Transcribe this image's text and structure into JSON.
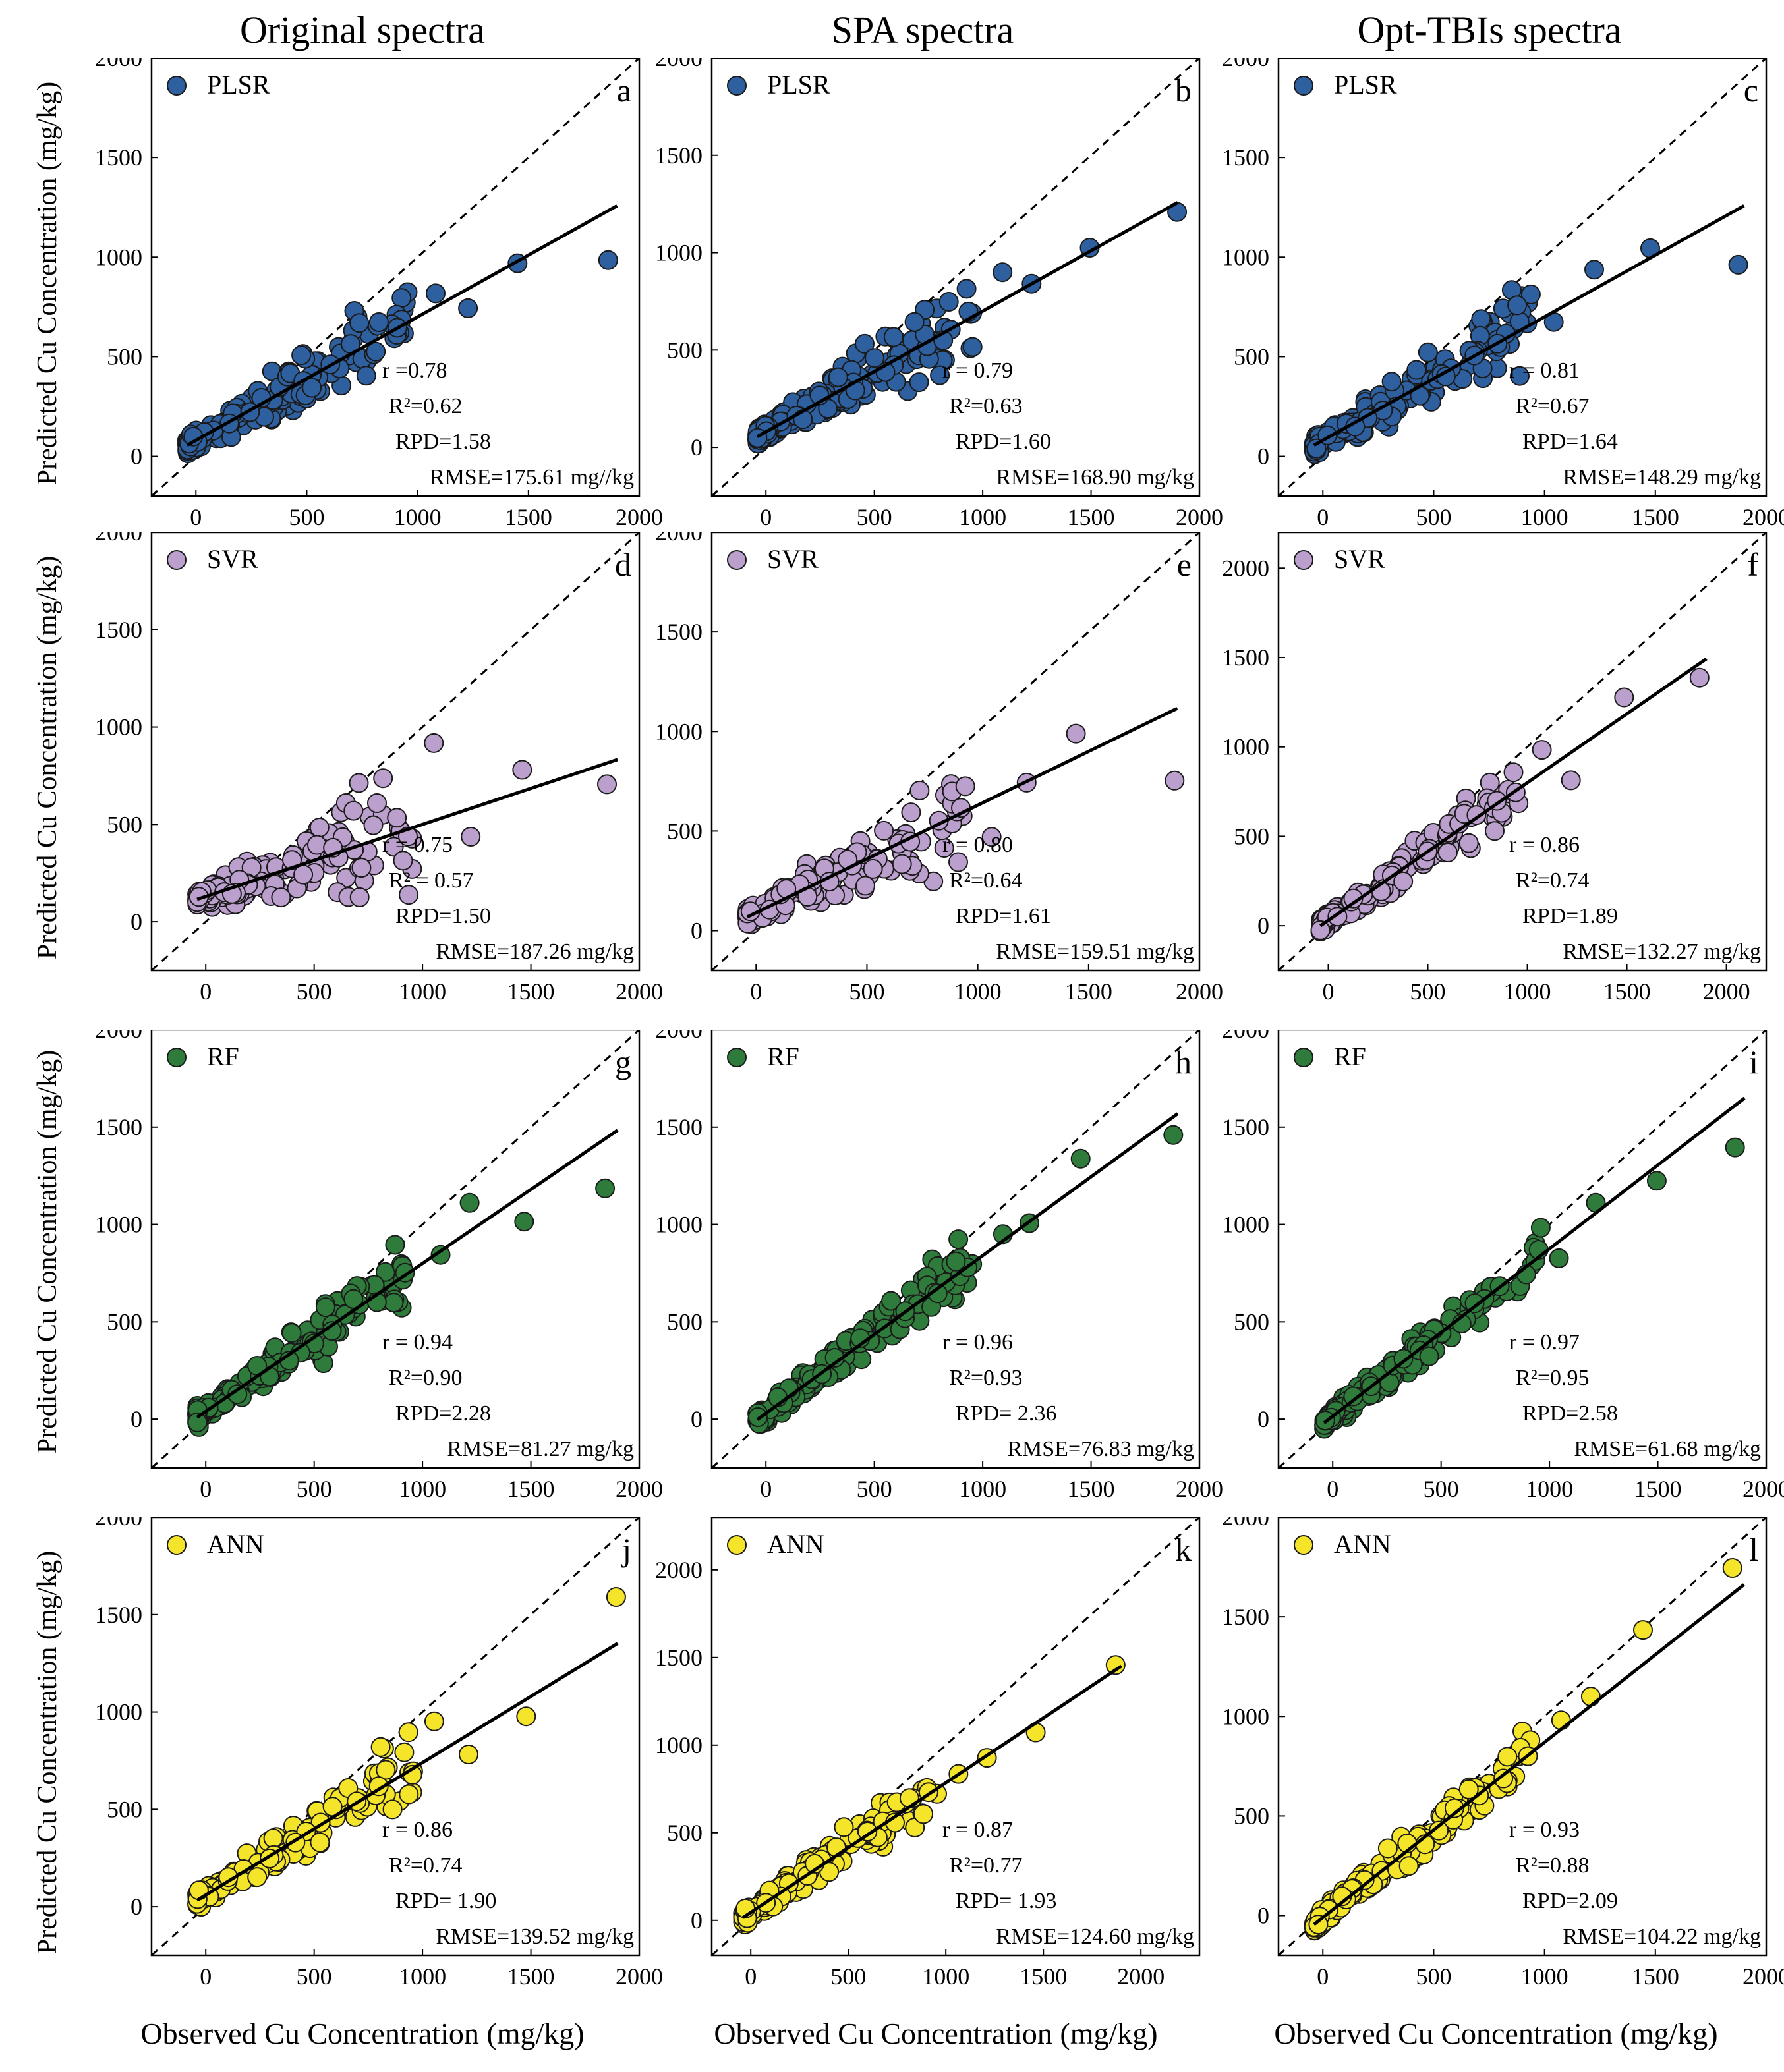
{
  "column_titles": [
    "Original spectra",
    "SPA spectra",
    "Opt-TBIs spectra"
  ],
  "y_axis_label": "Predicted Cu Concentration (mg/kg)",
  "x_axis_label": "Observed Cu Concentration (mg/kg)",
  "models": [
    {
      "name": "PLSR",
      "color": "#2e5f9e"
    },
    {
      "name": "SVR",
      "color": "#bb9fcc"
    },
    {
      "name": "RF",
      "color": "#2e7b3c"
    },
    {
      "name": "ANN",
      "color": "#f5e52a"
    }
  ],
  "chart_data": [
    {
      "type": "scatter",
      "panel": "a",
      "model": "PLSR",
      "spectra": "Original spectra",
      "xlim": [
        -200,
        2000
      ],
      "ylim": [
        -200,
        2000
      ],
      "xticks": [
        0,
        500,
        1000,
        1500,
        2000
      ],
      "yticks": [
        0,
        500,
        1000,
        1500,
        2000
      ],
      "fit": {
        "slope": 0.62,
        "intercept": 80
      },
      "stats": [
        "r =0.78",
        "R²=0.62",
        "RPD=1.58",
        "RMSE=175.61 mg//kg"
      ]
    },
    {
      "type": "scatter",
      "panel": "b",
      "model": "PLSR",
      "spectra": "SPA spectra",
      "xlim": [
        -250,
        2000
      ],
      "ylim": [
        -250,
        2000
      ],
      "xticks": [
        0,
        500,
        1000,
        1500,
        2000
      ],
      "yticks": [
        0,
        500,
        1000,
        1500,
        2000
      ],
      "fit": {
        "slope": 0.62,
        "intercept": 80
      },
      "stats": [
        "r = 0.79",
        "R²=0.63",
        "RPD=1.60",
        "RMSE=168.90 mg/kg"
      ]
    },
    {
      "type": "scatter",
      "panel": "c",
      "model": "PLSR",
      "spectra": "Opt-TBIs spectra",
      "xlim": [
        -200,
        2000
      ],
      "ylim": [
        -200,
        2000
      ],
      "xticks": [
        0,
        500,
        1000,
        1500,
        2000
      ],
      "yticks": [
        0,
        500,
        1000,
        1500,
        2000
      ],
      "fit": {
        "slope": 0.62,
        "intercept": 80
      },
      "stats": [
        "r = 0.81",
        "R²=0.67",
        "RPD=1.64",
        "RMSE=148.29 mg/kg"
      ]
    },
    {
      "type": "scatter",
      "panel": "d",
      "model": "SVR",
      "spectra": "Original spectra",
      "xlim": [
        -250,
        2000
      ],
      "ylim": [
        -250,
        2000
      ],
      "xticks": [
        0,
        500,
        1000,
        1500,
        2000
      ],
      "yticks": [
        0,
        500,
        1000,
        1500,
        2000
      ],
      "fit": {
        "slope": 0.37,
        "intercept": 130
      },
      "stats": [
        "r = 0.75",
        "R² = 0.57",
        "RPD=1.50",
        "RMSE=187.26 mg/kg"
      ]
    },
    {
      "type": "scatter",
      "panel": "e",
      "model": "SVR",
      "spectra": "SPA spectra",
      "xlim": [
        -200,
        2000
      ],
      "ylim": [
        -200,
        2000
      ],
      "xticks": [
        0,
        500,
        1000,
        1500,
        2000
      ],
      "yticks": [
        0,
        500,
        1000,
        1500,
        2000
      ],
      "fit": {
        "slope": 0.54,
        "intercept": 90
      },
      "stats": [
        "r = 0.80",
        "R²=0.64",
        "RPD=1.61",
        "RMSE=159.51 mg/kg"
      ]
    },
    {
      "type": "scatter",
      "panel": "f",
      "model": "SVR",
      "spectra": "Opt-TBIs spectra",
      "xlim": [
        -250,
        2200
      ],
      "ylim": [
        -250,
        2200
      ],
      "xticks": [
        0,
        500,
        1000,
        1500,
        2000
      ],
      "yticks": [
        0,
        500,
        1000,
        1500,
        2000
      ],
      "fit": {
        "slope": 0.77,
        "intercept": 30
      },
      "stats": [
        "r = 0.86",
        "R²=0.74",
        "RPD=1.89",
        "RMSE=132.27 mg/kg"
      ]
    },
    {
      "type": "scatter",
      "panel": "g",
      "model": "RF",
      "spectra": "Original spectra",
      "xlim": [
        -250,
        2000
      ],
      "ylim": [
        -250,
        2000
      ],
      "xticks": [
        0,
        500,
        1000,
        1500,
        2000
      ],
      "yticks": [
        0,
        500,
        1000,
        1500,
        2000
      ],
      "fit": {
        "slope": 0.76,
        "intercept": 40
      },
      "stats": [
        "r = 0.94",
        "R²=0.90",
        "RPD=2.28",
        "RMSE=81.27 mg/kg"
      ]
    },
    {
      "type": "scatter",
      "panel": "h",
      "model": "RF",
      "spectra": "SPA spectra",
      "xlim": [
        -250,
        2000
      ],
      "ylim": [
        -250,
        2000
      ],
      "xticks": [
        0,
        500,
        1000,
        1500,
        2000
      ],
      "yticks": [
        0,
        500,
        1000,
        1500,
        2000
      ],
      "fit": {
        "slope": 0.81,
        "intercept": 30
      },
      "stats": [
        "r = 0.96",
        "R²=0.93",
        "RPD= 2.36",
        "RMSE=76.83 mg/kg"
      ]
    },
    {
      "type": "scatter",
      "panel": "i",
      "model": "RF",
      "spectra": "Opt-TBIs spectra",
      "xlim": [
        -250,
        2000
      ],
      "ylim": [
        -250,
        2000
      ],
      "xticks": [
        0,
        500,
        1000,
        1500,
        2000
      ],
      "yticks": [
        0,
        500,
        1000,
        1500,
        2000
      ],
      "fit": {
        "slope": 0.86,
        "intercept": 15
      },
      "stats": [
        "r = 0.97",
        "R²=0.95",
        "RPD=2.58",
        "RMSE=61.68 mg/kg"
      ]
    },
    {
      "type": "scatter",
      "panel": "j",
      "model": "ANN",
      "spectra": "Original spectra",
      "xlim": [
        -250,
        2000
      ],
      "ylim": [
        -250,
        2000
      ],
      "xticks": [
        0,
        500,
        1000,
        1500,
        2000
      ],
      "yticks": [
        0,
        500,
        1000,
        1500,
        2000
      ],
      "fit": {
        "slope": 0.68,
        "intercept": 60
      },
      "stats": [
        "r = 0.86",
        "R²=0.74",
        "RPD= 1.90",
        "RMSE=139.52 mg/kg"
      ]
    },
    {
      "type": "scatter",
      "panel": "k",
      "model": "ANN",
      "spectra": "SPA spectra",
      "xlim": [
        -200,
        2300
      ],
      "ylim": [
        -200,
        2300
      ],
      "xticks": [
        0,
        500,
        1000,
        1500,
        2000
      ],
      "yticks": [
        0,
        500,
        1000,
        1500,
        2000
      ],
      "fit": {
        "slope": 0.74,
        "intercept": 45
      },
      "stats": [
        "r = 0.87",
        "R²=0.77",
        "RPD= 1.93",
        "RMSE=124.60 mg/kg"
      ]
    },
    {
      "type": "scatter",
      "panel": "l",
      "model": "ANN",
      "spectra": "Opt-TBIs spectra",
      "xlim": [
        -200,
        2000
      ],
      "ylim": [
        -200,
        2000
      ],
      "xticks": [
        0,
        500,
        1000,
        1500,
        2000
      ],
      "yticks": [
        0,
        500,
        1000,
        1500,
        2000
      ],
      "fit": {
        "slope": 0.88,
        "intercept": -10
      },
      "stats": [
        "r = 0.93",
        "R²=0.88",
        "RPD=2.09",
        "RMSE=104.22 mg/kg"
      ]
    }
  ]
}
